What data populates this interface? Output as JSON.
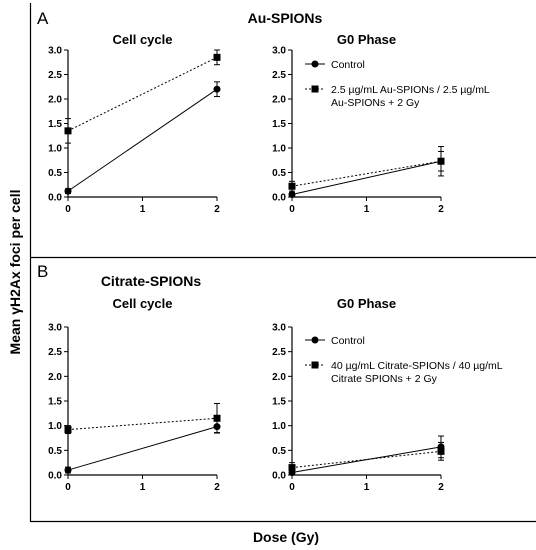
{
  "figure": {
    "ylabel": "Mean γH2Ax foci per cell",
    "xlabel": "Dose (Gy)"
  },
  "sections": [
    {
      "letter": "A",
      "title": "Au-SPIONs"
    },
    {
      "letter": "B",
      "title": "Citrate-SPIONs"
    }
  ],
  "chart_data": [
    {
      "type": "line",
      "title": "Cell cycle",
      "x": [
        0,
        2
      ],
      "xticks": [
        "0",
        "1",
        "2"
      ],
      "ylim": [
        0,
        3
      ],
      "yticks": [
        "0.0",
        "0.5",
        "1.0",
        "1.5",
        "2.0",
        "2.5",
        "3.0"
      ],
      "grid": false,
      "series": [
        {
          "values": [
            0.12,
            2.2
          ],
          "errors": [
            0.05,
            0.15
          ],
          "marker": "circle",
          "dash": "solid"
        },
        {
          "values": [
            1.35,
            2.85
          ],
          "errors": [
            0.25,
            0.15
          ],
          "marker": "square",
          "dash": "dotted"
        }
      ]
    },
    {
      "type": "line",
      "title": "G0 Phase",
      "x": [
        0,
        2
      ],
      "xticks": [
        "0",
        "1",
        "2"
      ],
      "ylim": [
        0,
        3
      ],
      "yticks": [
        "0.0",
        "0.5",
        "1.0",
        "1.5",
        "2.0",
        "2.5",
        "3.0"
      ],
      "grid": false,
      "legend": "top-right",
      "series": [
        {
          "name": "Control",
          "values": [
            0.05,
            0.73
          ],
          "errors": [
            0.04,
            0.3
          ],
          "marker": "circle",
          "dash": "solid"
        },
        {
          "name": "2.5 µg/mL Au-SPIONs / 2.5 µg/mL Au-SPIONs + 2 Gy",
          "legend_lines": [
            "2.5 µg/mL Au-SPIONs / 2.5 µg/mL",
            "Au-SPIONs + 2 Gy"
          ],
          "values": [
            0.22,
            0.73
          ],
          "errors": [
            0.1,
            0.2
          ],
          "marker": "square",
          "dash": "dotted"
        }
      ]
    },
    {
      "type": "line",
      "title": "Cell cycle",
      "x": [
        0,
        2
      ],
      "xticks": [
        "0",
        "1",
        "2"
      ],
      "ylim": [
        0,
        3
      ],
      "yticks": [
        "0.0",
        "0.5",
        "1.0",
        "1.5",
        "2.0",
        "2.5",
        "3.0"
      ],
      "grid": false,
      "series": [
        {
          "values": [
            0.1,
            0.98
          ],
          "errors": [
            0.06,
            0.12
          ],
          "marker": "circle",
          "dash": "solid"
        },
        {
          "values": [
            0.92,
            1.15
          ],
          "errors": [
            0.08,
            0.3
          ],
          "marker": "square",
          "dash": "dotted"
        }
      ]
    },
    {
      "type": "line",
      "title": "G0 Phase",
      "x": [
        0,
        2
      ],
      "xticks": [
        "0",
        "1",
        "2"
      ],
      "ylim": [
        0,
        3
      ],
      "yticks": [
        "0.0",
        "0.5",
        "1.0",
        "1.5",
        "2.0",
        "2.5",
        "3.0"
      ],
      "grid": false,
      "legend": "top-right",
      "series": [
        {
          "name": "Control",
          "values": [
            0.05,
            0.57
          ],
          "errors": [
            0.04,
            0.22
          ],
          "marker": "circle",
          "dash": "solid"
        },
        {
          "name": "40 µg/mL Citrate-SPIONs / 40 µg/mL Citrate SPIONs + 2 Gy",
          "legend_lines": [
            "40 µg/mL Citrate-SPIONs / 40 µg/mL",
            "Citrate SPIONs + 2 Gy"
          ],
          "values": [
            0.15,
            0.48
          ],
          "errors": [
            0.1,
            0.18
          ],
          "marker": "square",
          "dash": "dotted"
        }
      ]
    }
  ]
}
